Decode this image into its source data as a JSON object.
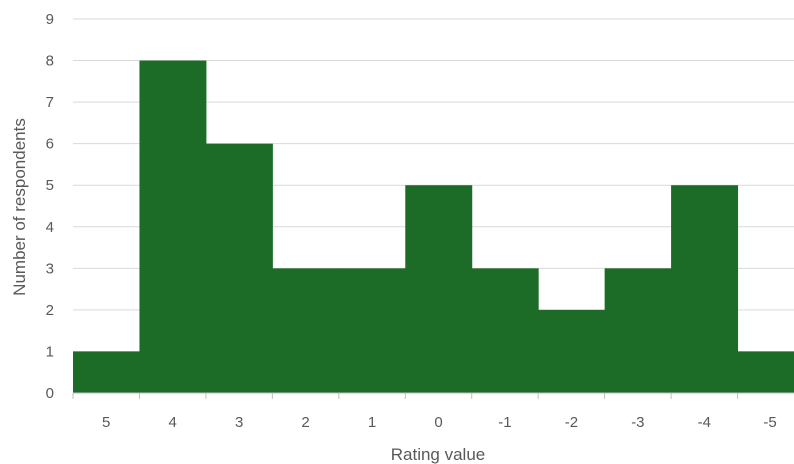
{
  "chart_data": {
    "type": "bar",
    "title": "",
    "xlabel": "Rating value",
    "ylabel": "Number of respondents",
    "categories": [
      "5",
      "4",
      "3",
      "2",
      "1",
      "0",
      "-1",
      "-2",
      "-3",
      "-4",
      "-5"
    ],
    "values": [
      1,
      8,
      6,
      3,
      3,
      5,
      3,
      2,
      3,
      5,
      1
    ],
    "ylim": [
      0,
      9
    ],
    "yticks": [
      "0",
      "1",
      "2",
      "3",
      "4",
      "5",
      "6",
      "7",
      "8",
      "9"
    ],
    "grid": true,
    "legend": "none",
    "bar_gap": 0,
    "colors": {
      "bar": "#1c6b27",
      "grid": "#d9d9d9",
      "axis": "#bfbfbf",
      "text": "#595959"
    }
  }
}
